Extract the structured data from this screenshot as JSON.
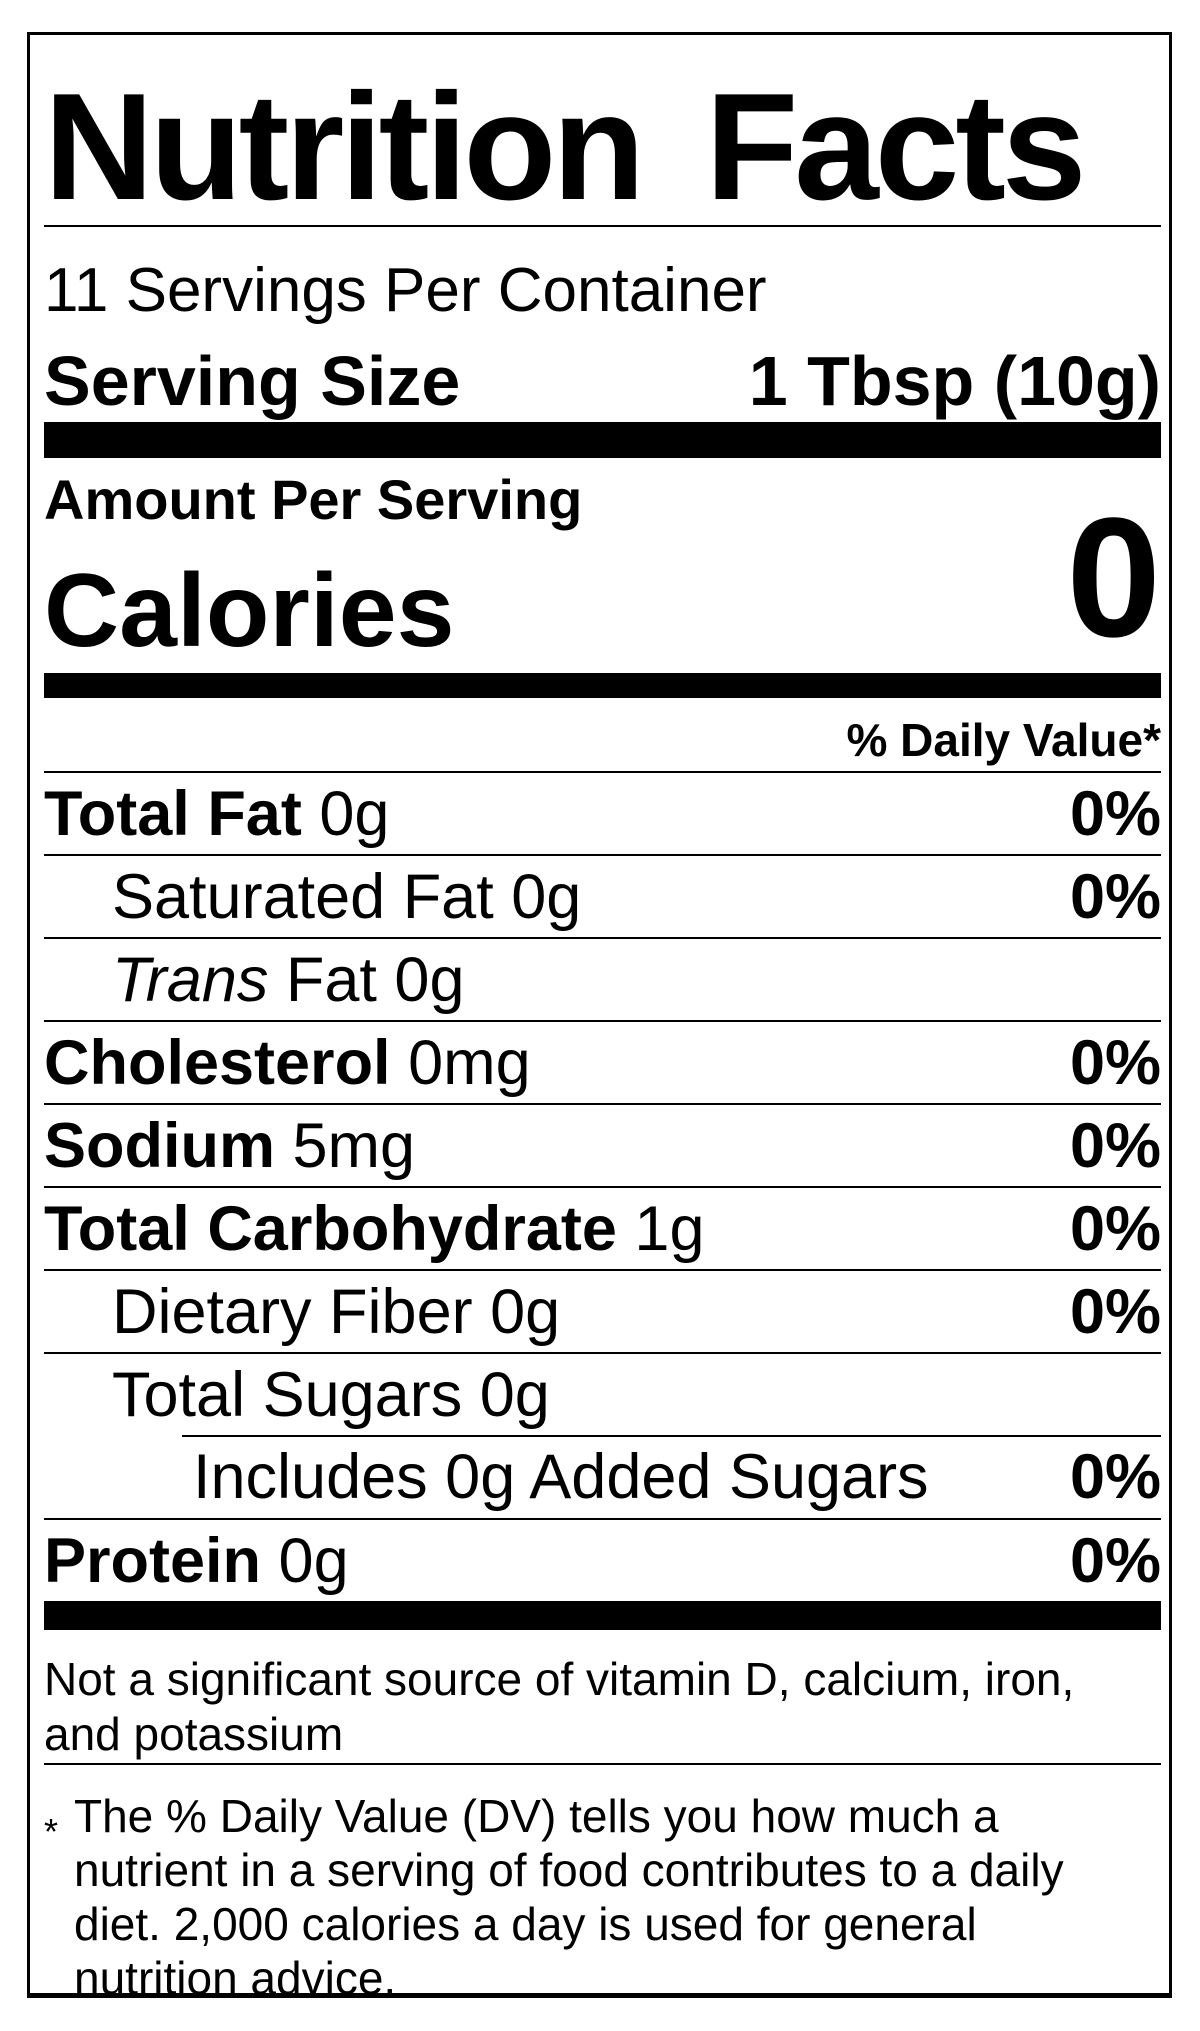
{
  "label": {
    "title": "Nutrition Facts",
    "servings_per_container": "11 Servings Per Container",
    "serving_size_label": "Serving Size",
    "serving_size_value": "1 Tbsp (10g)",
    "amount_per_serving": "Amount Per Serving",
    "calories_label": "Calories",
    "calories_value": "0",
    "daily_value_header": "% Daily Value*",
    "rows": [
      {
        "bold": "Total Fat",
        "text": " 0g",
        "dv": "0%"
      },
      {
        "text": "Saturated Fat 0g",
        "dv": "0%"
      },
      {
        "italic": "Trans",
        "text": " Fat 0g"
      },
      {
        "bold": "Cholesterol",
        "text": " 0mg",
        "dv": "0%"
      },
      {
        "bold": "Sodium",
        "text": " 5mg",
        "dv": "0%"
      },
      {
        "bold": "Total Carbohydrate",
        "text": " 1g",
        "dv": "0%"
      },
      {
        "text": "Dietary Fiber 0g",
        "dv": "0%"
      },
      {
        "text": "Total Sugars 0g"
      },
      {
        "text": "Includes 0g Added Sugars",
        "dv": "0%"
      },
      {
        "bold": "Protein",
        "text": " 0g",
        "dv": "0%"
      }
    ],
    "not_significant_note": "Not a significant source of vitamin D, calcium, iron, and potassium",
    "footnote_marker": "*",
    "footnote": "The % Daily Value (DV) tells you how much a nutrient in a serving of food contributes to a daily diet. 2,000 calories a day is used for general nutrition advice."
  }
}
